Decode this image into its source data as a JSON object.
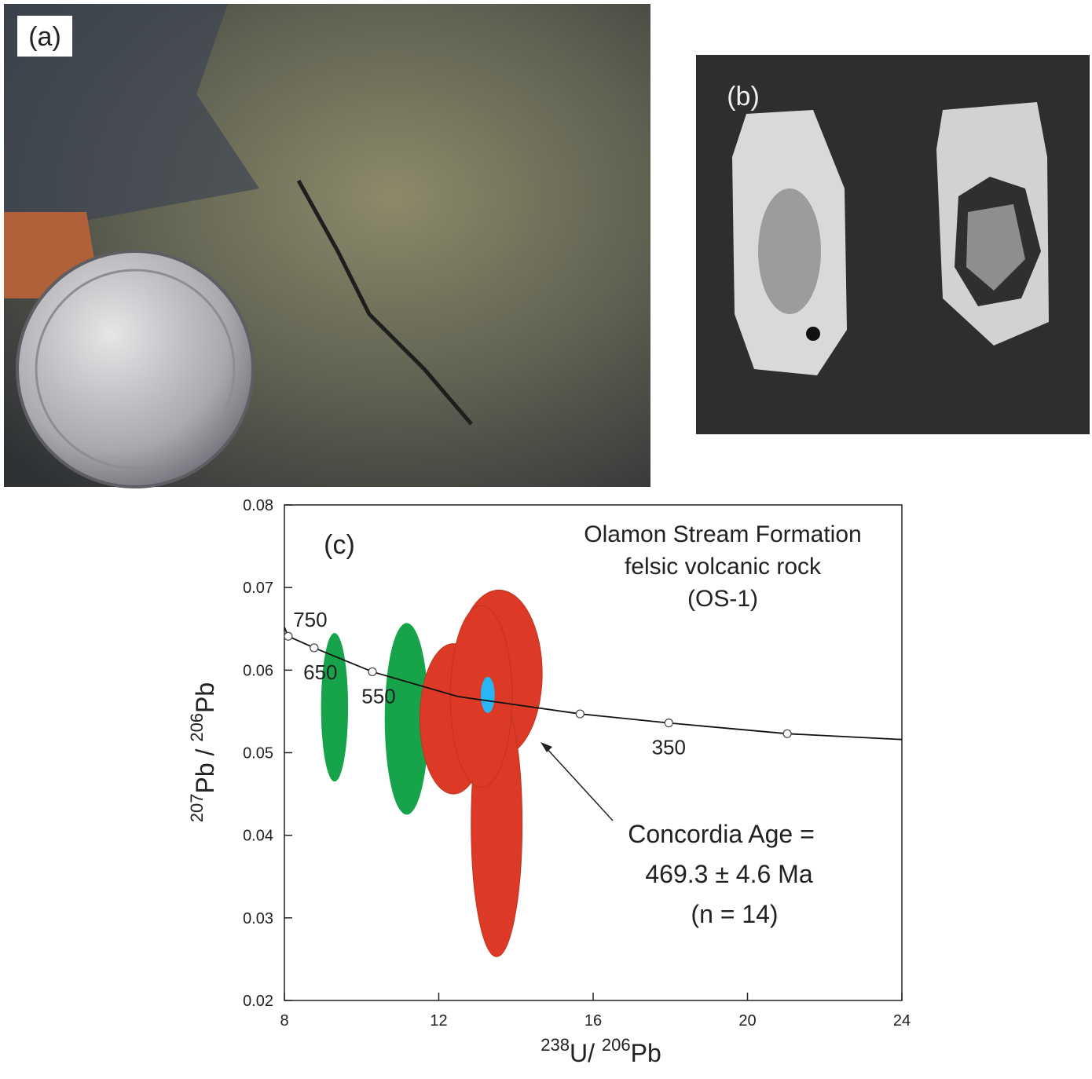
{
  "panels": {
    "a": "(a)",
    "b": "(b)"
  },
  "chart_data": {
    "type": "scatter",
    "panel_label": "(c)",
    "title": [
      "Olamon Stream Formation",
      "felsic volcanic rock",
      "(OS-1)"
    ],
    "xlabel": [
      "238",
      "U/ ",
      "206",
      "Pb"
    ],
    "ylabel": [
      "207",
      "Pb / ",
      "206",
      "Pb"
    ],
    "xlim": [
      8,
      24
    ],
    "xticks": [
      8,
      12,
      16,
      20,
      24
    ],
    "ylim": [
      0.02,
      0.08
    ],
    "yticks": [
      0.02,
      0.03,
      0.04,
      0.05,
      0.06,
      0.07,
      0.08
    ],
    "concordia": {
      "x": [
        8.0,
        8.1,
        8.77,
        10.28,
        12.5,
        15.66,
        17.96,
        21.03,
        24.0
      ],
      "y": [
        0.0652,
        0.0641,
        0.0627,
        0.0598,
        0.0568,
        0.0547,
        0.0536,
        0.0523,
        0.0516
      ]
    },
    "age_markers": {
      "x": [
        8.1,
        8.77,
        10.28,
        15.66,
        17.96,
        21.03
      ],
      "y": [
        0.0641,
        0.0627,
        0.0598,
        0.0547,
        0.0536,
        0.0523
      ],
      "labels": [
        "750",
        "650",
        "550",
        null,
        "350",
        null
      ]
    },
    "series": [
      {
        "color": "#16a34a",
        "x": [
          9.3,
          11.17
        ],
        "x_err": [
          0.35,
          0.57
        ],
        "y": [
          0.0555,
          0.0541
        ],
        "y_err": [
          0.009,
          0.0116
        ]
      },
      {
        "color": "#dc3a26",
        "x": [
          12.38,
          13.56,
          13.5,
          13.1
        ],
        "x_err": [
          0.87,
          1.12,
          0.66,
          0.8
        ],
        "y": [
          0.0541,
          0.0596,
          0.0414,
          0.0568
        ],
        "y_err": [
          0.0091,
          0.0101,
          0.0161,
          0.011
        ]
      },
      {
        "color": "#29b6f6",
        "x": [
          13.27
        ],
        "x_err": [
          0.18
        ],
        "y": [
          0.057
        ],
        "y_err": [
          0.0022
        ]
      }
    ],
    "annotation": [
      "Concordia Age =",
      "469.3 ± 4.6 Ma",
      "(n = 14)"
    ]
  }
}
